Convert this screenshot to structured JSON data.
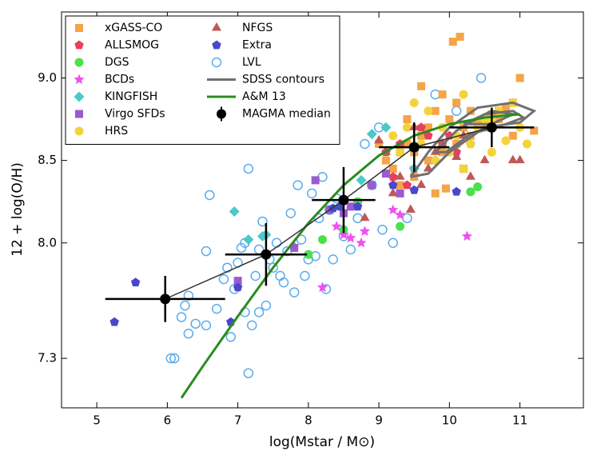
{
  "chart_data": {
    "type": "scatter",
    "xlabel": "log(Mstar / M⊙)",
    "ylabel": "12 + log(O/H)",
    "xlim": [
      4.5,
      11.9
    ],
    "ylim": [
      7.0,
      9.4
    ],
    "xticks": [
      5,
      6,
      7,
      8,
      9,
      10,
      11
    ],
    "yticks": [
      7.3,
      {
        "value": 8,
        "label": "8.0"
      },
      8.5,
      {
        "value": 9,
        "label": "9.0"
      }
    ],
    "legend": "upper left",
    "series": [
      {
        "name": "xGASS-CO",
        "color": "#f5a447",
        "marker": "square",
        "x": [
          10.05,
          10.15,
          9.5,
          9.7,
          9.9,
          10.1,
          10.3,
          10.5,
          10.7,
          10.9,
          11.0,
          11.2,
          9.2,
          9.4,
          9.6,
          9.8,
          10.0,
          10.2,
          10.4,
          10.6,
          10.8,
          9.1,
          9.3,
          9.5,
          9.7,
          9.9,
          10.1,
          10.3,
          10.5,
          9.8,
          9.3,
          9.0,
          9.6,
          10.7,
          10.9,
          10.2,
          9.4,
          9.95
        ],
        "y": [
          9.22,
          9.25,
          8.55,
          8.7,
          8.9,
          8.85,
          8.8,
          8.75,
          8.8,
          8.85,
          9.0,
          8.68,
          8.45,
          8.6,
          8.65,
          8.8,
          8.75,
          8.7,
          8.72,
          8.78,
          8.82,
          8.5,
          8.35,
          8.4,
          8.5,
          8.55,
          8.6,
          8.65,
          8.7,
          8.3,
          8.55,
          8.6,
          8.95,
          8.75,
          8.65,
          8.45,
          8.75,
          8.33
        ]
      },
      {
        "name": "ALLSMOG",
        "color": "#e8405e",
        "marker": "pentagon",
        "x": [
          9.1,
          9.3,
          9.5,
          9.7,
          9.9,
          10.1,
          9.4,
          9.8,
          10.3,
          9.2,
          9.6,
          10.0
        ],
        "y": [
          8.55,
          8.6,
          8.45,
          8.65,
          8.6,
          8.55,
          8.35,
          8.5,
          8.6,
          8.4,
          8.7,
          8.65
        ]
      },
      {
        "name": "DGS",
        "color": "#4ce04c",
        "marker": "circle",
        "x": [
          8.2,
          8.5,
          8.7,
          8.0,
          9.3,
          10.3,
          10.4,
          8.3
        ],
        "y": [
          8.02,
          8.08,
          8.25,
          7.93,
          8.1,
          8.31,
          8.34,
          8.2
        ]
      },
      {
        "name": "BCDs",
        "color": "#f050f0",
        "marker": "star",
        "x": [
          8.2,
          8.5,
          8.6,
          8.75,
          8.8,
          9.2,
          9.3,
          10.25,
          8.4,
          7.8
        ],
        "y": [
          7.73,
          8.05,
          8.03,
          8.0,
          8.07,
          8.2,
          8.17,
          8.04,
          8.1,
          7.98
        ]
      },
      {
        "name": "KINGFISH",
        "color": "#4cc8c8",
        "marker": "diamond",
        "x": [
          6.95,
          7.15,
          7.35,
          8.9,
          9.1,
          9.5,
          8.75,
          7.4,
          9.8
        ],
        "y": [
          8.19,
          8.02,
          8.04,
          8.66,
          8.7,
          8.45,
          8.38,
          8.05,
          8.5
        ]
      },
      {
        "name": "Virgo SFDs",
        "color": "#9c5ad0",
        "marker": "square",
        "x": [
          7.0,
          8.1,
          8.3,
          8.5,
          8.6,
          8.9,
          9.1,
          7.8,
          9.3
        ],
        "y": [
          7.77,
          8.38,
          8.2,
          8.18,
          8.22,
          8.35,
          8.42,
          7.97,
          8.3
        ]
      },
      {
        "name": "HRS",
        "color": "#f2d43a",
        "marker": "circle",
        "x": [
          9.5,
          9.7,
          9.9,
          10.1,
          10.3,
          10.5,
          10.7,
          10.9,
          11.0,
          9.6,
          9.8,
          10.0,
          10.2,
          10.4,
          10.6,
          10.8,
          9.3,
          9.2,
          11.1,
          10.2,
          10.6,
          9.4
        ],
        "y": [
          8.85,
          8.8,
          8.7,
          8.65,
          8.6,
          8.75,
          8.8,
          8.85,
          8.7,
          8.6,
          8.5,
          8.55,
          8.45,
          8.7,
          8.75,
          8.62,
          8.55,
          8.65,
          8.6,
          8.9,
          8.55,
          8.7
        ]
      },
      {
        "name": "NFGS",
        "color": "#c05858",
        "marker": "triangle",
        "x": [
          9.0,
          9.1,
          9.3,
          9.5,
          9.7,
          9.9,
          10.1,
          10.3,
          10.5,
          10.9,
          11.0,
          9.2,
          9.6,
          10.2,
          9.8,
          8.8,
          9.45
        ],
        "y": [
          8.62,
          8.55,
          8.4,
          8.7,
          8.45,
          8.6,
          8.52,
          8.4,
          8.5,
          8.5,
          8.5,
          8.3,
          8.35,
          8.65,
          8.55,
          8.15,
          8.2
        ]
      },
      {
        "name": "Extra",
        "color": "#4848cc",
        "marker": "pentagon",
        "x": [
          5.25,
          5.55,
          7.0,
          6.9,
          8.7,
          9.5,
          10.1,
          8.45,
          9.2,
          8.35
        ],
        "y": [
          7.52,
          7.76,
          7.73,
          7.52,
          8.22,
          8.32,
          8.31,
          8.22,
          8.35,
          8.21
        ]
      },
      {
        "name": "LVL",
        "color": "#5aacee",
        "marker": "open-circle",
        "x": [
          6.05,
          6.1,
          6.2,
          6.25,
          6.3,
          6.3,
          6.4,
          6.55,
          6.6,
          6.7,
          6.8,
          6.85,
          6.9,
          6.95,
          7.0,
          7.05,
          7.1,
          7.1,
          7.15,
          7.2,
          7.25,
          7.3,
          7.3,
          7.35,
          7.4,
          7.45,
          7.5,
          7.55,
          7.6,
          7.65,
          7.7,
          7.75,
          7.8,
          7.85,
          7.9,
          7.95,
          8.0,
          8.05,
          8.1,
          8.15,
          8.2,
          8.25,
          8.3,
          8.4,
          8.5,
          8.6,
          8.7,
          8.8,
          8.9,
          9.0,
          9.05,
          9.2,
          9.4,
          9.5,
          9.8,
          10.1,
          10.45,
          7.15,
          8.35,
          6.55
        ],
        "y": [
          7.3,
          7.3,
          7.55,
          7.62,
          7.45,
          7.68,
          7.51,
          7.95,
          8.29,
          7.6,
          7.78,
          7.85,
          7.43,
          7.72,
          7.88,
          7.97,
          7.58,
          8.0,
          8.45,
          7.5,
          7.8,
          7.96,
          7.58,
          8.13,
          7.62,
          7.9,
          7.85,
          8.0,
          7.8,
          7.76,
          7.95,
          8.18,
          7.7,
          8.35,
          8.02,
          7.8,
          7.9,
          8.3,
          7.92,
          8.15,
          8.4,
          7.72,
          8.2,
          8.27,
          8.04,
          7.96,
          8.15,
          8.6,
          8.35,
          8.7,
          8.08,
          8.0,
          8.15,
          8.57,
          8.9,
          8.8,
          9.0,
          7.21,
          7.9,
          7.5
        ]
      },
      {
        "name": "SDSS contours",
        "color": "#707070",
        "marker": "line",
        "x": [
          9.45,
          9.7,
          10.0,
          10.4,
          10.9,
          11.2,
          11.0,
          10.5,
          10.0,
          9.7,
          9.45,
          null,
          9.8,
          10.1,
          10.5,
          10.9,
          11.05,
          10.8,
          10.3,
          9.95,
          9.8,
          null,
          10.2,
          10.6,
          10.9,
          10.6,
          10.2
        ],
        "y": [
          8.4,
          8.55,
          8.7,
          8.82,
          8.85,
          8.8,
          8.73,
          8.7,
          8.55,
          8.42,
          8.4,
          null,
          8.55,
          8.68,
          8.78,
          8.8,
          8.76,
          8.72,
          8.66,
          8.55,
          8.55,
          null,
          8.72,
          8.8,
          8.78,
          8.72,
          8.72
        ]
      },
      {
        "name": "A&M 13",
        "color": "#2a8c1e",
        "marker": "line",
        "x": [
          6.2,
          6.5,
          7.0,
          7.5,
          8.0,
          8.5,
          9.0,
          9.5,
          10.0,
          10.5,
          11.0
        ],
        "y": [
          7.06,
          7.25,
          7.555,
          7.85,
          8.12,
          8.35,
          8.53,
          8.65,
          8.72,
          8.76,
          8.78
        ]
      },
      {
        "name": "MAGMA median",
        "color": "#000000",
        "marker": "errorbar",
        "x": [
          5.97,
          7.4,
          8.5,
          9.5,
          10.6
        ],
        "y": [
          7.66,
          7.93,
          8.26,
          8.58,
          8.7
        ],
        "xerr": [
          0.85,
          0.58,
          0.45,
          0.5,
          0.6
        ],
        "yerr": [
          0.14,
          0.19,
          0.2,
          0.15,
          0.12
        ]
      }
    ]
  }
}
